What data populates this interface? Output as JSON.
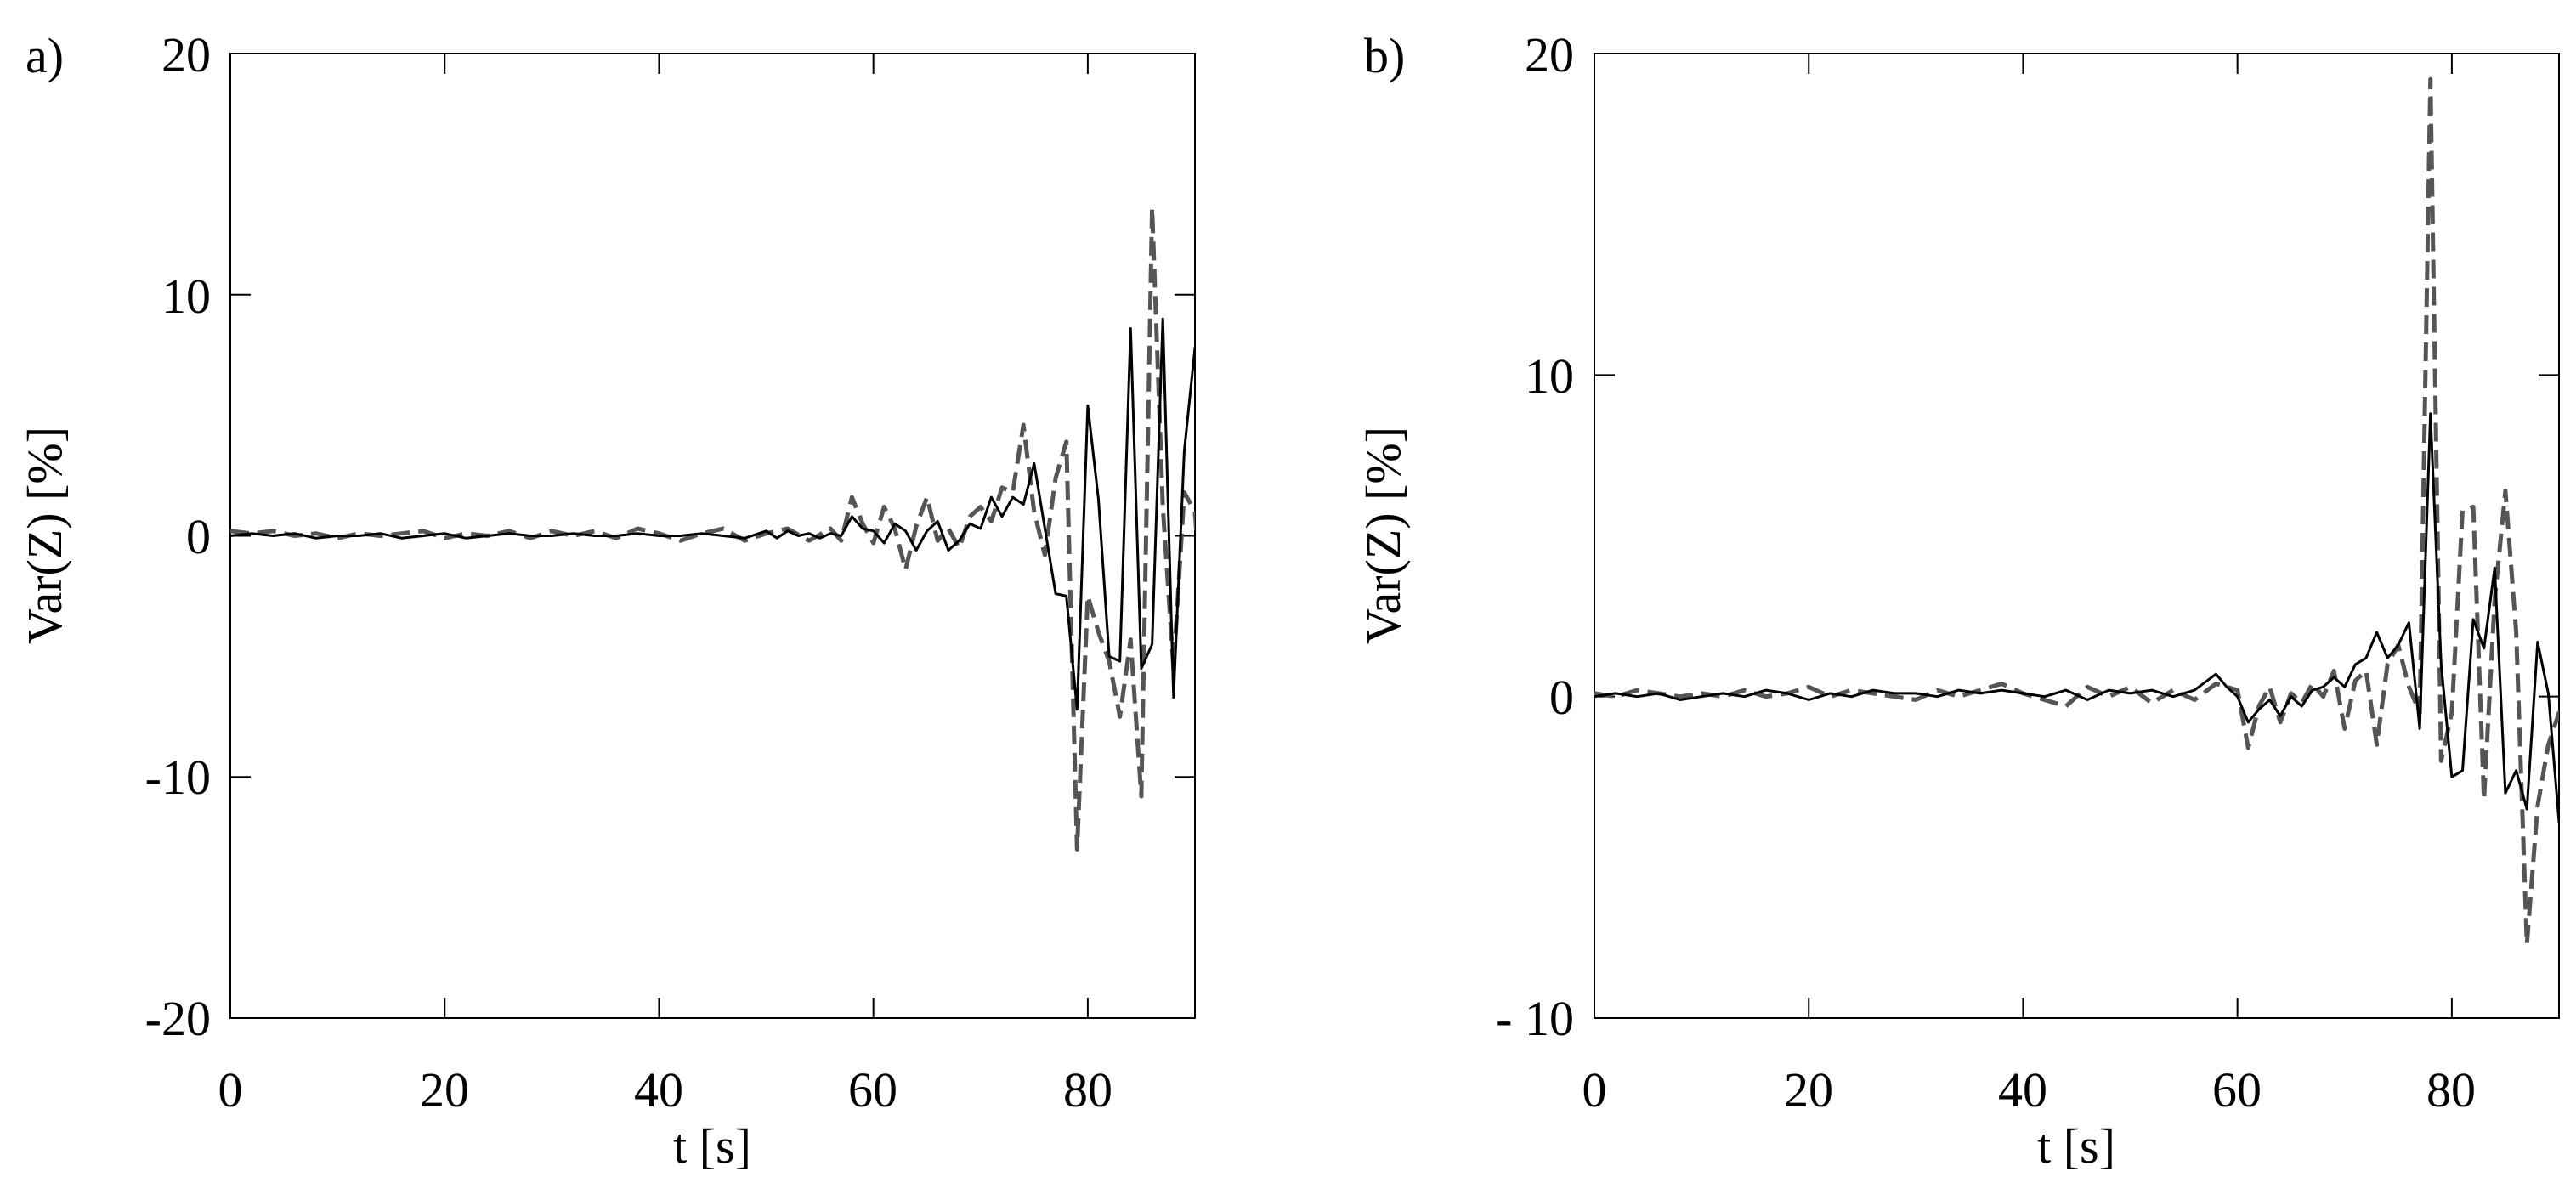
{
  "chart_data": [
    {
      "type": "line",
      "panel_label": "a)",
      "xlabel": "t [s]",
      "ylabel": "Var(Z) [%]",
      "xlim": [
        0,
        90
      ],
      "ylim": [
        -20,
        20
      ],
      "x_ticks": [
        0,
        20,
        40,
        60,
        80
      ],
      "y_ticks": [
        -20,
        -10,
        0,
        10,
        20
      ],
      "x_tick_labels": [
        "0",
        "20",
        "40",
        "60",
        "80"
      ],
      "y_tick_labels": [
        "-20",
        "-10",
        "0",
        "10",
        "20"
      ],
      "grid": false,
      "series": [
        {
          "style": "solid",
          "color": "#000000",
          "points": [
            [
              0,
              0
            ],
            [
              2,
              0.1
            ],
            [
              4,
              0
            ],
            [
              6,
              0.1
            ],
            [
              8,
              -0.1
            ],
            [
              10,
              0
            ],
            [
              12,
              0
            ],
            [
              14,
              0.1
            ],
            [
              16,
              -0.1
            ],
            [
              18,
              0
            ],
            [
              20,
              0.1
            ],
            [
              22,
              -0.1
            ],
            [
              24,
              0
            ],
            [
              26,
              0.1
            ],
            [
              28,
              0
            ],
            [
              30,
              0
            ],
            [
              32,
              0.1
            ],
            [
              34,
              0
            ],
            [
              36,
              0
            ],
            [
              38,
              0.1
            ],
            [
              40,
              0
            ],
            [
              42,
              0
            ],
            [
              44,
              0.1
            ],
            [
              46,
              0
            ],
            [
              48,
              -0.1
            ],
            [
              50,
              0.2
            ],
            [
              51,
              -0.1
            ],
            [
              52,
              0.2
            ],
            [
              53,
              0
            ],
            [
              54,
              0.1
            ],
            [
              55,
              -0.1
            ],
            [
              56,
              0.1
            ],
            [
              57,
              0
            ],
            [
              58,
              0.8
            ],
            [
              59,
              0.3
            ],
            [
              60,
              0.2
            ],
            [
              61,
              -0.3
            ],
            [
              62,
              0.5
            ],
            [
              63,
              0.2
            ],
            [
              64,
              -0.6
            ],
            [
              65,
              0.2
            ],
            [
              66,
              0.6
            ],
            [
              67,
              -0.6
            ],
            [
              68,
              -0.2
            ],
            [
              69,
              0.5
            ],
            [
              70,
              0.3
            ],
            [
              71,
              1.6
            ],
            [
              72,
              0.8
            ],
            [
              73,
              1.6
            ],
            [
              74,
              1.3
            ],
            [
              75,
              3.0
            ],
            [
              77,
              -2.4
            ],
            [
              78,
              -2.5
            ],
            [
              79,
              -7.2
            ],
            [
              80,
              5.4
            ],
            [
              81,
              1.5
            ],
            [
              82,
              -5.0
            ],
            [
              83,
              -5.2
            ],
            [
              84,
              8.6
            ],
            [
              85,
              -5.5
            ],
            [
              86,
              -4.5
            ],
            [
              87,
              9.0
            ],
            [
              88,
              -6.7
            ],
            [
              89,
              3.5
            ],
            [
              90,
              7.8
            ],
            [
              91,
              -1.2
            ]
          ]
        },
        {
          "style": "dashed",
          "color": "#555555",
          "points": [
            [
              0,
              0.2
            ],
            [
              2,
              0.1
            ],
            [
              4,
              0.2
            ],
            [
              6,
              0
            ],
            [
              8,
              0.1
            ],
            [
              10,
              -0.1
            ],
            [
              12,
              0.1
            ],
            [
              14,
              0
            ],
            [
              16,
              0.1
            ],
            [
              18,
              0.2
            ],
            [
              20,
              -0.1
            ],
            [
              22,
              0.1
            ],
            [
              24,
              0
            ],
            [
              26,
              0.2
            ],
            [
              28,
              -0.1
            ],
            [
              30,
              0.2
            ],
            [
              32,
              0
            ],
            [
              34,
              0.2
            ],
            [
              36,
              -0.1
            ],
            [
              38,
              0.3
            ],
            [
              40,
              0.1
            ],
            [
              42,
              -0.2
            ],
            [
              44,
              0.1
            ],
            [
              46,
              0.3
            ],
            [
              48,
              -0.2
            ],
            [
              50,
              0.1
            ],
            [
              52,
              0.3
            ],
            [
              54,
              -0.2
            ],
            [
              56,
              0.3
            ],
            [
              57,
              -0.2
            ],
            [
              58,
              1.6
            ],
            [
              59,
              0.5
            ],
            [
              60,
              -0.3
            ],
            [
              61,
              1.2
            ],
            [
              62,
              0.3
            ],
            [
              63,
              -1.4
            ],
            [
              64,
              0.4
            ],
            [
              65,
              1.6
            ],
            [
              66,
              -0.2
            ],
            [
              67,
              0.3
            ],
            [
              68,
              -0.5
            ],
            [
              69,
              0.8
            ],
            [
              70,
              1.2
            ],
            [
              71,
              0.6
            ],
            [
              72,
              2.0
            ],
            [
              73,
              1.8
            ],
            [
              74,
              4.6
            ],
            [
              75,
              1.0
            ],
            [
              76,
              -0.8
            ],
            [
              77,
              2.4
            ],
            [
              78,
              3.9
            ],
            [
              79,
              -13.0
            ],
            [
              80,
              -2.5
            ],
            [
              81,
              -4.0
            ],
            [
              82,
              -5.2
            ],
            [
              83,
              -7.5
            ],
            [
              84,
              -4.3
            ],
            [
              85,
              -10.8
            ],
            [
              86,
              13.6
            ],
            [
              87,
              1.2
            ],
            [
              88,
              -5.5
            ],
            [
              89,
              1.8
            ],
            [
              90,
              1.0
            ],
            [
              91,
              -5.3
            ]
          ]
        }
      ]
    },
    {
      "type": "line",
      "panel_label": "b)",
      "xlabel": "t [s]",
      "ylabel": "Var(Z) [%]",
      "xlim": [
        0,
        90
      ],
      "ylim": [
        -10,
        20
      ],
      "x_ticks": [
        0,
        20,
        40,
        60,
        80
      ],
      "y_ticks": [
        -10,
        0,
        10,
        20
      ],
      "x_tick_labels": [
        "0",
        "20",
        "40",
        "60",
        "80"
      ],
      "y_tick_labels": [
        "- 10",
        "0",
        "10",
        "20"
      ],
      "grid": false,
      "series": [
        {
          "style": "solid",
          "color": "#000000",
          "points": [
            [
              0,
              0
            ],
            [
              2,
              0.1
            ],
            [
              4,
              0
            ],
            [
              6,
              0.1
            ],
            [
              8,
              -0.1
            ],
            [
              10,
              0
            ],
            [
              12,
              0.1
            ],
            [
              14,
              0
            ],
            [
              16,
              0.2
            ],
            [
              18,
              0.1
            ],
            [
              20,
              -0.1
            ],
            [
              22,
              0.1
            ],
            [
              24,
              0
            ],
            [
              26,
              0.2
            ],
            [
              28,
              0.1
            ],
            [
              30,
              0.1
            ],
            [
              32,
              0
            ],
            [
              34,
              0.2
            ],
            [
              36,
              0.1
            ],
            [
              38,
              0.2
            ],
            [
              40,
              0.1
            ],
            [
              42,
              0
            ],
            [
              44,
              0.2
            ],
            [
              46,
              -0.1
            ],
            [
              48,
              0.2
            ],
            [
              50,
              0.1
            ],
            [
              52,
              0.2
            ],
            [
              54,
              0
            ],
            [
              56,
              0.2
            ],
            [
              58,
              0.7
            ],
            [
              59,
              0.3
            ],
            [
              60,
              0
            ],
            [
              61,
              -0.8
            ],
            [
              62,
              -0.4
            ],
            [
              63,
              -0.1
            ],
            [
              64,
              -0.6
            ],
            [
              65,
              0
            ],
            [
              66,
              -0.3
            ],
            [
              67,
              0.2
            ],
            [
              68,
              0.3
            ],
            [
              69,
              0.6
            ],
            [
              70,
              0.3
            ],
            [
              71,
              1.0
            ],
            [
              72,
              1.2
            ],
            [
              73,
              2.0
            ],
            [
              74,
              1.2
            ],
            [
              75,
              1.6
            ],
            [
              76,
              2.3
            ],
            [
              77,
              -1.0
            ],
            [
              78,
              8.8
            ],
            [
              79,
              1.0
            ],
            [
              80,
              -2.5
            ],
            [
              81,
              -2.3
            ],
            [
              82,
              2.4
            ],
            [
              83,
              1.5
            ],
            [
              84,
              4.0
            ],
            [
              85,
              -3.0
            ],
            [
              86,
              -2.3
            ],
            [
              87,
              -3.5
            ],
            [
              88,
              1.7
            ],
            [
              89,
              0.1
            ],
            [
              90,
              -3.9
            ],
            [
              91,
              -4.0
            ]
          ]
        },
        {
          "style": "dashed",
          "color": "#555555",
          "points": [
            [
              0,
              0.1
            ],
            [
              2,
              0
            ],
            [
              4,
              0.2
            ],
            [
              6,
              0.1
            ],
            [
              8,
              0
            ],
            [
              10,
              0.1
            ],
            [
              12,
              0
            ],
            [
              14,
              0.2
            ],
            [
              16,
              0
            ],
            [
              18,
              0.1
            ],
            [
              20,
              0.3
            ],
            [
              22,
              0
            ],
            [
              24,
              0.2
            ],
            [
              26,
              0.1
            ],
            [
              28,
              0
            ],
            [
              30,
              -0.1
            ],
            [
              32,
              0.2
            ],
            [
              34,
              0
            ],
            [
              36,
              0.2
            ],
            [
              38,
              0.4
            ],
            [
              40,
              0.1
            ],
            [
              42,
              -0.1
            ],
            [
              44,
              -0.3
            ],
            [
              46,
              0.3
            ],
            [
              48,
              0
            ],
            [
              50,
              0.3
            ],
            [
              52,
              -0.2
            ],
            [
              54,
              0.2
            ],
            [
              56,
              -0.1
            ],
            [
              58,
              0.4
            ],
            [
              60,
              0.2
            ],
            [
              61,
              -1.6
            ],
            [
              62,
              -0.3
            ],
            [
              63,
              0.3
            ],
            [
              64,
              -0.8
            ],
            [
              65,
              0.1
            ],
            [
              66,
              -0.2
            ],
            [
              67,
              0.4
            ],
            [
              68,
              0
            ],
            [
              69,
              0.8
            ],
            [
              70,
              -1.0
            ],
            [
              71,
              0.5
            ],
            [
              72,
              0.8
            ],
            [
              73,
              -1.5
            ],
            [
              74,
              1.0
            ],
            [
              75,
              1.6
            ],
            [
              76,
              0.3
            ],
            [
              77,
              -0.5
            ],
            [
              78,
              19.2
            ],
            [
              79,
              -2.0
            ],
            [
              80,
              -0.5
            ],
            [
              81,
              5.8
            ],
            [
              82,
              5.9
            ],
            [
              83,
              -3.2
            ],
            [
              84,
              3.0
            ],
            [
              85,
              6.4
            ],
            [
              86,
              2.0
            ],
            [
              87,
              -7.7
            ],
            [
              88,
              -3.4
            ],
            [
              89,
              -1.5
            ],
            [
              90,
              -0.5
            ],
            [
              91,
              -0.2
            ]
          ]
        }
      ]
    }
  ]
}
